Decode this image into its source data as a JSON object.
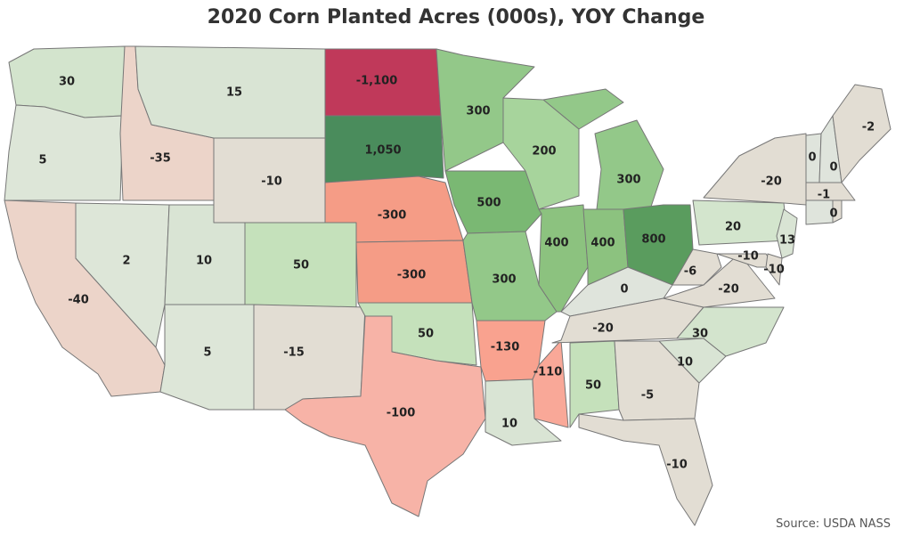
{
  "chart_data": {
    "type": "choropleth",
    "title": "2020 Corn Planted Acres (000s), YOY Change",
    "source": "Source: USDA NASS",
    "values": [
      30,
      5,
      -40,
      2,
      -35,
      15,
      -10,
      10,
      50,
      5,
      -15,
      -1100,
      1050,
      -300,
      -300,
      50,
      -100,
      300,
      500,
      300,
      -130,
      10,
      -110,
      200,
      400,
      400,
      300,
      800,
      0,
      -20,
      50,
      -5,
      -10,
      10,
      30,
      -20,
      -6,
      20,
      -20,
      -10,
      -10,
      13,
      0,
      0,
      -2,
      -1,
      0
    ],
    "value_labels": [
      "30",
      "5",
      "-40",
      "2",
      "-35",
      "15",
      "-10",
      "10",
      "50",
      "5",
      "-15",
      "-1,100",
      "1,050",
      "-300",
      "-300",
      "50",
      "-100",
      "300",
      "500",
      "300",
      "-130",
      "10",
      "-110",
      "200",
      "400",
      "400",
      "300",
      "800",
      "0",
      "-20",
      "50",
      "-5",
      "-10",
      "10",
      "30",
      "-20",
      "-6",
      "20",
      "-20",
      "-10",
      "-10",
      "13",
      "0",
      "0",
      "-2",
      "-1",
      "0"
    ],
    "colors": [
      "#d3e4cd",
      "#dde6d8",
      "#ecd4c9",
      "#dde6d8",
      "#ecd4c9",
      "#d9e4d4",
      "#e2ddd3",
      "#d9e4d4",
      "#c5e1bb",
      "#dde6d8",
      "#e2ddd3",
      "#c0395a",
      "#4a8c5c",
      "#f59c86",
      "#f59c86",
      "#c5e1bb",
      "#f7b3a7",
      "#93c889",
      "#7ab873",
      "#93c889",
      "#f9a28f",
      "#d9e4d4",
      "#f9a898",
      "#a7d49c",
      "#8cc27f",
      "#8cc27f",
      "#93c889",
      "#5a9c5e",
      "#dfe4dc",
      "#e2ddd3",
      "#c5e1bb",
      "#e2ddd3",
      "#e2ddd3",
      "#d9e4d4",
      "#d3e4cd",
      "#e2ddd3",
      "#e2ddd3",
      "#d3e5cd",
      "#e2ddd3",
      "#e2ddd3",
      "#e2ddd3",
      "#d9e4d4",
      "#dfe4dc",
      "#dfe4dc",
      "#e2ddd3",
      "#e2ddd3",
      "#dfe4dc"
    ]
  }
}
